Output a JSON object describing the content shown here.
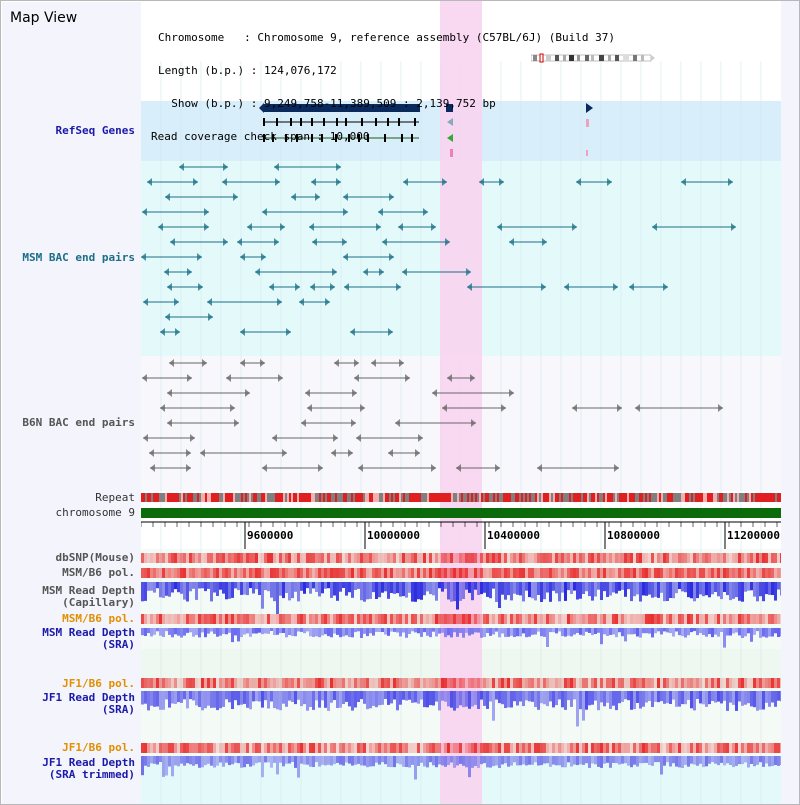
{
  "page": {
    "title": "Map View"
  },
  "info": {
    "chromosome_line": "Chromosome   : Chromosome 9, reference assembly (C57BL/6J) (Build 37)",
    "length_line": "Length (b.p.) : 124,076,172",
    "show_line": "  Show (b.p.) : 9,249,758-11,389,509 : 2,139,752 bp",
    "coverage_line": "Read coverage check span : 10,000"
  },
  "tracks": {
    "refseq": "RefSeq Genes",
    "msm_bac": "MSM BAC end pairs",
    "b6n_bac": "B6N BAC end pairs",
    "repeat": "Repeat",
    "chromosome": "chromosome 9",
    "dbsnp": "dbSNP(Mouse)",
    "msm_b6_pol_1": "MSM/B6 pol.",
    "msm_depth_cap_1": "MSM Read Depth",
    "msm_depth_cap_2": "(Capillary)",
    "msm_b6_pol_2": "MSM/B6 pol.",
    "msm_depth_sra_1": "MSM Read Depth",
    "msm_depth_sra_2": "(SRA)",
    "jf1_b6_pol_1": "JF1/B6 pol.",
    "jf1_depth_sra_1": "JF1 Read Depth",
    "jf1_depth_sra_2": "(SRA)",
    "jf1_b6_pol_2": "JF1/B6 pol.",
    "jf1_depth_trim_1": "JF1 Read Depth",
    "jf1_depth_trim_2": "(SRA trimmed)"
  },
  "axis": {
    "ticks": [
      "9600000",
      "10000000",
      "10400000",
      "10800000",
      "11200000"
    ]
  },
  "colors": {
    "highlight": "#f8d4f0",
    "refseq_bg": "#d8eefa",
    "msm_bg": "#e4fafa",
    "b6n_bg": "#f8f8fc",
    "chromosome_bar": "#0b6b0b",
    "msm_feature": "#1a6f86",
    "b6n_feature": "#666666",
    "depth_blue": "#2a2adf",
    "pol_red": "#e83030"
  }
}
